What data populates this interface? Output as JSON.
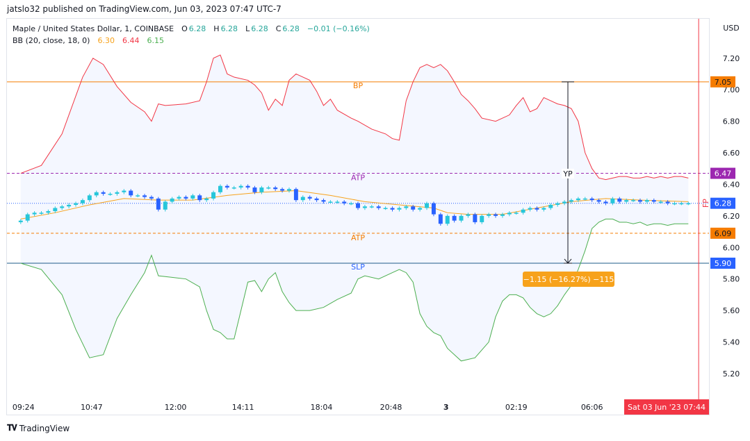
{
  "publisher_line": "jatslo32 published on TradingView.com, Jun 03, 2023 07:47 UTC-7",
  "legend": {
    "symbol": "Maple / United States Dollar, 1, COINBASE",
    "o_label": "O",
    "o_value": "6.28",
    "h_label": "H",
    "h_value": "6.28",
    "l_label": "L",
    "l_value": "6.28",
    "c_label": "C",
    "c_value": "6.28",
    "change": "−0.01 (−0.16%)",
    "bb_label": "BB (20, close, 18, 0)",
    "bb_basis": "6.30",
    "bb_upper": "6.44",
    "bb_lower": "6.15"
  },
  "footer_brand": "TradingView",
  "colors": {
    "up": "#26c6da",
    "down": "#2962ff",
    "upper_band": "#f23645",
    "lower_band": "#4caf50",
    "basis": "#f7a21b",
    "fill": "#2962ff",
    "bp_line": "#f57c00",
    "atp_purple": "#9c27b0",
    "atp_orange": "#f57c00",
    "slp_line": "#1e5b8a",
    "fp_line": "#f23645"
  },
  "chart_data": {
    "type": "line",
    "title": "Maple / United States Dollar, 1, COINBASE",
    "ylabel": "USD",
    "ylim": [
      5.05,
      7.45
    ],
    "y_ticks": [
      "7.20",
      "7.00",
      "6.80",
      "6.60",
      "6.40",
      "6.20",
      "6.00",
      "5.80",
      "5.60",
      "5.40",
      "5.20"
    ],
    "x_ticks": [
      "09:24",
      "10:47",
      "12:00",
      "14:11",
      "18:04",
      "20:48",
      "3",
      "02:19",
      "06:06"
    ],
    "x_tick_positions": [
      0.4,
      10.3,
      22.5,
      32.3,
      43.7,
      53.8,
      61.8,
      72.0,
      83.0
    ],
    "x_range": [
      -2,
      100
    ],
    "series": [
      {
        "name": "BB upper",
        "x": [
          0,
          3,
          6,
          9,
          10.5,
          12,
          14,
          16,
          18,
          19,
          20,
          21,
          24,
          26,
          27,
          28,
          29,
          30,
          31,
          33,
          34,
          35,
          36,
          37,
          38,
          39,
          40,
          42,
          43,
          44,
          45,
          46,
          48,
          49,
          51,
          53,
          54,
          55,
          56,
          57,
          58,
          59,
          60,
          61,
          62,
          63,
          64,
          65,
          66,
          67,
          69,
          70,
          71,
          72,
          73,
          74,
          75,
          76,
          77,
          78,
          79,
          80,
          81,
          82,
          83,
          84,
          85,
          86,
          87,
          88,
          89,
          90,
          91,
          92,
          93,
          94,
          95,
          96,
          97
        ],
        "values": [
          6.47,
          6.52,
          6.72,
          7.08,
          7.2,
          7.16,
          7.02,
          6.92,
          6.86,
          6.8,
          6.91,
          6.9,
          6.91,
          6.93,
          7.05,
          7.2,
          7.22,
          7.1,
          7.08,
          7.06,
          7.03,
          6.98,
          6.87,
          6.94,
          6.9,
          7.06,
          7.1,
          7.06,
          6.99,
          6.9,
          6.94,
          6.87,
          6.82,
          6.8,
          6.75,
          6.72,
          6.69,
          6.68,
          6.93,
          7.05,
          7.14,
          7.16,
          7.14,
          7.16,
          7.12,
          7.05,
          6.97,
          6.93,
          6.88,
          6.82,
          6.8,
          6.82,
          6.84,
          6.9,
          6.95,
          6.86,
          6.88,
          6.95,
          6.93,
          6.91,
          6.9,
          6.88,
          6.8,
          6.6,
          6.5,
          6.44,
          6.43,
          6.44,
          6.45,
          6.45,
          6.44,
          6.44,
          6.45,
          6.44,
          6.45,
          6.44,
          6.45,
          6.45,
          6.44
        ]
      },
      {
        "name": "BB basis",
        "x": [
          0,
          5,
          10,
          15,
          20,
          25,
          30,
          35,
          40,
          45,
          50,
          55,
          60,
          62,
          65,
          70,
          75,
          80,
          85,
          90,
          97
        ],
        "values": [
          6.18,
          6.22,
          6.27,
          6.31,
          6.3,
          6.3,
          6.33,
          6.35,
          6.36,
          6.33,
          6.29,
          6.27,
          6.25,
          6.22,
          6.21,
          6.21,
          6.25,
          6.29,
          6.31,
          6.3,
          6.29
        ]
      },
      {
        "name": "BB lower",
        "x": [
          0,
          3,
          6,
          8,
          10,
          12,
          14,
          16,
          18,
          19,
          20,
          22,
          24,
          26,
          27,
          28,
          29,
          30,
          31,
          33,
          34,
          35,
          36,
          37,
          38,
          39,
          40,
          42,
          44,
          46,
          48,
          49,
          50,
          52,
          54,
          55,
          56,
          57,
          58,
          59,
          60,
          61,
          62,
          64,
          66,
          68,
          69,
          70,
          71,
          72,
          73,
          74,
          75,
          76,
          77,
          78,
          79,
          80,
          81,
          82,
          83,
          84,
          85,
          86,
          87,
          88,
          89,
          90,
          91,
          92,
          93,
          94,
          95,
          96,
          97
        ],
        "values": [
          5.9,
          5.86,
          5.7,
          5.48,
          5.3,
          5.32,
          5.55,
          5.7,
          5.84,
          5.95,
          5.82,
          5.81,
          5.8,
          5.75,
          5.6,
          5.48,
          5.46,
          5.42,
          5.42,
          5.78,
          5.79,
          5.72,
          5.8,
          5.84,
          5.72,
          5.65,
          5.6,
          5.6,
          5.62,
          5.67,
          5.71,
          5.8,
          5.82,
          5.8,
          5.84,
          5.86,
          5.84,
          5.78,
          5.58,
          5.5,
          5.46,
          5.44,
          5.36,
          5.28,
          5.3,
          5.4,
          5.56,
          5.66,
          5.7,
          5.7,
          5.68,
          5.62,
          5.58,
          5.56,
          5.58,
          5.63,
          5.7,
          5.76,
          5.86,
          5.98,
          6.12,
          6.16,
          6.18,
          6.18,
          6.16,
          6.16,
          6.15,
          6.16,
          6.14,
          6.15,
          6.15,
          6.14,
          6.15,
          6.15,
          6.15
        ]
      },
      {
        "name": "Price",
        "x": [
          0,
          1,
          2,
          3,
          4,
          5,
          6,
          7,
          8,
          9,
          10,
          11,
          12,
          13,
          14,
          15,
          16,
          17,
          18,
          19,
          20,
          21,
          22,
          23,
          24,
          25,
          26,
          27,
          28,
          29,
          30,
          31,
          32,
          33,
          34,
          35,
          36,
          37,
          38,
          39,
          40,
          41,
          42,
          43,
          44,
          45,
          46,
          47,
          48,
          49,
          50,
          51,
          52,
          53,
          54,
          55,
          56,
          57,
          58,
          59,
          60,
          61,
          62,
          63,
          64,
          65,
          66,
          67,
          68,
          69,
          70,
          71,
          72,
          73,
          74,
          75,
          76,
          77,
          78,
          79,
          80,
          81,
          82,
          83,
          84,
          85,
          86,
          87,
          88,
          89,
          90,
          91,
          92,
          93,
          94,
          95,
          96,
          97
        ],
        "values": [
          6.17,
          6.21,
          6.22,
          6.22,
          6.23,
          6.25,
          6.26,
          6.27,
          6.28,
          6.3,
          6.33,
          6.35,
          6.34,
          6.34,
          6.35,
          6.36,
          6.33,
          6.33,
          6.32,
          6.31,
          6.24,
          6.29,
          6.31,
          6.32,
          6.31,
          6.33,
          6.3,
          6.31,
          6.35,
          6.39,
          6.38,
          6.38,
          6.39,
          6.38,
          6.35,
          6.38,
          6.38,
          6.37,
          6.36,
          6.37,
          6.3,
          6.32,
          6.31,
          6.3,
          6.29,
          6.29,
          6.29,
          6.28,
          6.28,
          6.25,
          6.26,
          6.26,
          6.25,
          6.25,
          6.24,
          6.25,
          6.26,
          6.24,
          6.25,
          6.28,
          6.21,
          6.15,
          6.2,
          6.17,
          6.2,
          6.21,
          6.16,
          6.2,
          6.21,
          6.2,
          6.21,
          6.22,
          6.22,
          6.24,
          6.25,
          6.24,
          6.25,
          6.27,
          6.28,
          6.29,
          6.3,
          6.31,
          6.31,
          6.3,
          6.29,
          6.28,
          6.31,
          6.29,
          6.3,
          6.3,
          6.29,
          6.3,
          6.29,
          6.29,
          6.28,
          6.28,
          6.28,
          6.28
        ]
      }
    ],
    "horizontal_lines": [
      {
        "label": "BP",
        "value": 7.05,
        "style": "solid",
        "price_label": "7.05"
      },
      {
        "label": "ATP",
        "value": 6.47,
        "style": "dashed",
        "price_label": "6.47"
      },
      {
        "label": "ATP",
        "value": 6.09,
        "style": "dashed",
        "price_label": "6.09"
      },
      {
        "label": "SLP",
        "value": 5.9,
        "style": "solid",
        "price_label": "5.90"
      }
    ],
    "current_price": {
      "value": 6.28,
      "price_label": "6.28"
    },
    "measure": {
      "label": "YP",
      "from": 7.05,
      "to": 5.9,
      "x": 79.5,
      "text": "−1.15 (−16.27%) −115"
    },
    "fp_marker": {
      "label": "FP",
      "x": 98.5
    },
    "time_badge": "Sat 03 Jun '23   07:44",
    "legend_position": "top-left",
    "grid": false
  }
}
